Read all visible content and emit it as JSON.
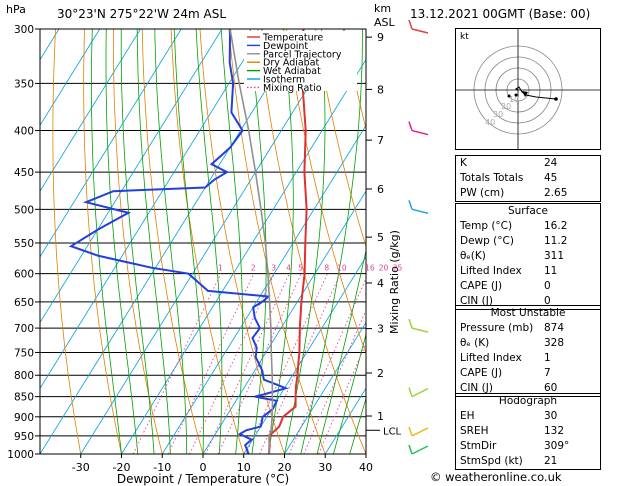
{
  "header": {
    "location": "30°23'N  275°22'W  24m  ASL",
    "datetime": "13.12.2021  00GMT  (Base: 00)",
    "hpa_unit": "hPa",
    "km_unit": "km",
    "asl_unit": "ASL"
  },
  "chart_data": {
    "type": "line",
    "title": "Skew-T log-P diagram",
    "xlabel": "Dewpoint / Temperature (°C)",
    "ylabel": "hPa",
    "y2label": "Mixing Ratio (g/kg)",
    "xlim": [
      -40,
      40
    ],
    "ylim": [
      1000,
      300
    ],
    "x_ticks": [
      "-30",
      "-20",
      "-10",
      "0",
      "10",
      "20",
      "30",
      "40"
    ],
    "x_tick_values": [
      -30,
      -20,
      -10,
      0,
      10,
      20,
      30,
      40
    ],
    "pressure_ticks": [
      "300",
      "350",
      "400",
      "450",
      "500",
      "550",
      "600",
      "650",
      "700",
      "750",
      "800",
      "850",
      "900",
      "950",
      "1000"
    ],
    "pressure_values": [
      300,
      350,
      400,
      450,
      500,
      550,
      600,
      650,
      700,
      750,
      800,
      850,
      900,
      950,
      1000
    ],
    "km_ticks": [
      "9",
      "8",
      "7",
      "6",
      "5",
      "4",
      "3",
      "2",
      "1"
    ],
    "km_pressures": [
      307,
      356,
      411,
      472,
      541,
      616,
      701,
      795,
      898
    ],
    "lcl_label": "LCL",
    "lcl_pressure": 935,
    "mixing_ratio_labels": [
      "1",
      "2",
      "3",
      "4",
      "5",
      "8",
      "10",
      "16",
      "20",
      "25"
    ],
    "mixing_ratio_values": [
      1,
      2,
      3,
      4,
      5,
      8,
      10,
      16,
      20,
      25
    ],
    "legend": [
      {
        "name": "Temperature",
        "color": "#e03030",
        "style": "solid"
      },
      {
        "name": "Dewpoint",
        "color": "#2040e0",
        "style": "solid"
      },
      {
        "name": "Parcel Trajectory",
        "color": "#909090",
        "style": "solid"
      },
      {
        "name": "Dry Adiabat",
        "color": "#e08000",
        "style": "solid"
      },
      {
        "name": "Wet Adiabat",
        "color": "#00a000",
        "style": "solid"
      },
      {
        "name": "Isotherm",
        "color": "#00a0e0",
        "style": "solid"
      },
      {
        "name": "Mixing Ratio",
        "color": "#e040a0",
        "style": "dotted"
      }
    ],
    "series": [
      {
        "name": "Temperature",
        "color": "#e03030",
        "points": [
          [
            1000,
            16.2
          ],
          [
            975,
            15
          ],
          [
            950,
            13.5
          ],
          [
            925,
            14.5
          ],
          [
            900,
            14
          ],
          [
            874,
            15.5
          ],
          [
            850,
            14
          ],
          [
            825,
            12.5
          ],
          [
            800,
            11.2
          ],
          [
            775,
            9.7
          ],
          [
            750,
            8.2
          ],
          [
            700,
            4.6
          ],
          [
            650,
            1
          ],
          [
            600,
            -2.5
          ],
          [
            550,
            -7
          ],
          [
            500,
            -11.8
          ],
          [
            450,
            -18
          ],
          [
            400,
            -24
          ],
          [
            350,
            -32
          ],
          [
            300,
            -40
          ]
        ]
      },
      {
        "name": "Dewpoint",
        "color": "#2040e0",
        "points": [
          [
            1000,
            11.2
          ],
          [
            975,
            9
          ],
          [
            960,
            9.7
          ],
          [
            945,
            6
          ],
          [
            935,
            7
          ],
          [
            925,
            10
          ],
          [
            900,
            9
          ],
          [
            880,
            10.3
          ],
          [
            860,
            10
          ],
          [
            850,
            4
          ],
          [
            845,
            5.8
          ],
          [
            830,
            10.3
          ],
          [
            810,
            3.6
          ],
          [
            790,
            1.9
          ],
          [
            760,
            -1.8
          ],
          [
            740,
            -3
          ],
          [
            720,
            -5.5
          ],
          [
            700,
            -5.2
          ],
          [
            680,
            -8
          ],
          [
            660,
            -10
          ],
          [
            650,
            -8.6
          ],
          [
            640,
            -7.9
          ],
          [
            630,
            -23.6
          ],
          [
            600,
            -31
          ],
          [
            590,
            -41
          ],
          [
            570,
            -56
          ],
          [
            555,
            -64
          ],
          [
            530,
            -60
          ],
          [
            505,
            -55
          ],
          [
            490,
            -67
          ],
          [
            475,
            -62
          ],
          [
            470,
            -40
          ],
          [
            460,
            -39
          ],
          [
            450,
            -37
          ],
          [
            440,
            -42
          ],
          [
            430,
            -41
          ],
          [
            420,
            -40
          ],
          [
            400,
            -39.5
          ],
          [
            380,
            -45
          ],
          [
            350,
            -49
          ],
          [
            330,
            -53
          ],
          [
            300,
            -58
          ]
        ]
      },
      {
        "name": "Parcel Trajectory",
        "color": "#909090",
        "points": [
          [
            1000,
            16.2
          ],
          [
            950,
            13.5
          ],
          [
            935,
            13.1
          ],
          [
            900,
            11.3
          ],
          [
            874,
            9.8
          ],
          [
            850,
            8.3
          ],
          [
            800,
            5
          ],
          [
            750,
            1.3
          ],
          [
            700,
            -2.5
          ],
          [
            650,
            -6.8
          ],
          [
            600,
            -11.5
          ],
          [
            550,
            -16.8
          ],
          [
            500,
            -23
          ],
          [
            450,
            -30
          ],
          [
            400,
            -38
          ],
          [
            350,
            -47.5
          ],
          [
            300,
            -58
          ]
        ]
      }
    ]
  },
  "hodograph": {
    "label": "kt",
    "ring_labels": [
      "10",
      "20",
      "30",
      "40"
    ]
  },
  "indices": {
    "k_label": "K",
    "k": "24",
    "tt_label": "Totals Totals",
    "tt": "45",
    "pw_label": "PW (cm)",
    "pw": "2.65"
  },
  "surface": {
    "title": "Surface",
    "temp_label": "Temp (°C)",
    "temp": "16.2",
    "dewp_label": "Dewp (°C)",
    "dewp": "11.2",
    "theta_label": "θₑ(K)",
    "theta": "311",
    "li_label": "Lifted Index",
    "li": "11",
    "cape_label": "CAPE (J)",
    "cape": "0",
    "cin_label": "CIN (J)",
    "cin": "0"
  },
  "most_unstable": {
    "title": "Most Unstable",
    "pres_label": "Pressure (mb)",
    "pres": "874",
    "theta_label": "θₑ (K)",
    "theta": "328",
    "li_label": "Lifted Index",
    "li": "1",
    "cape_label": "CAPE (J)",
    "cape": "7",
    "cin_label": "CIN (J)",
    "cin": "60"
  },
  "hodo_stats": {
    "title": "Hodograph",
    "eh_label": "EH",
    "eh": "30",
    "sreh_label": "SREH",
    "sreh": "132",
    "stmdir_label": "StmDir",
    "stmdir": "309°",
    "stmspd_label": "StmSpd (kt)",
    "stmspd": "21"
  },
  "footer": {
    "copyright": "© weatheronline.co.uk"
  }
}
